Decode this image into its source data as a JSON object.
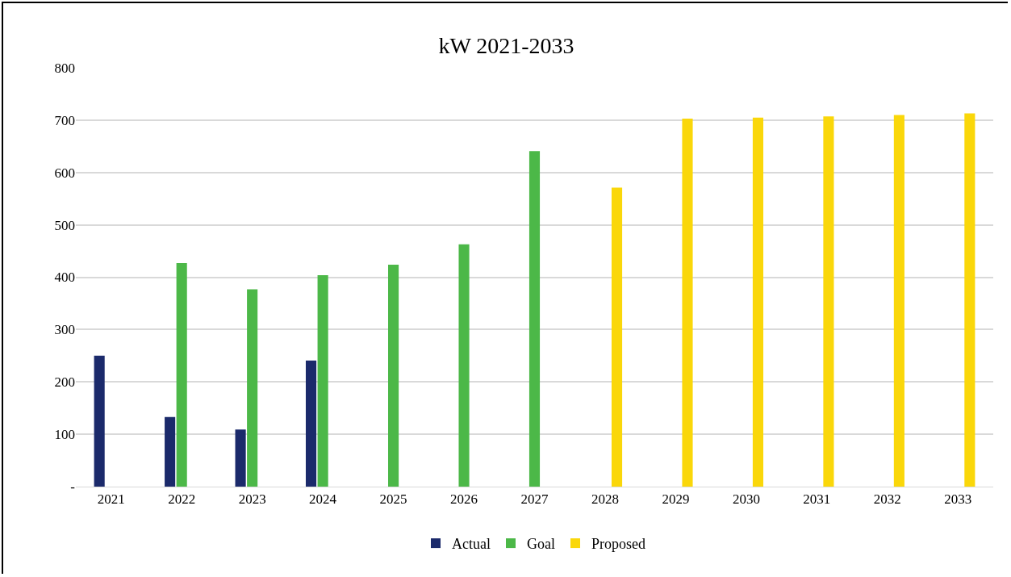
{
  "chart_data": {
    "type": "bar",
    "title": "kW 2021-2033",
    "categories": [
      "2021",
      "2022",
      "2023",
      "2024",
      "2025",
      "2026",
      "2027",
      "2028",
      "2029",
      "2030",
      "2031",
      "2032",
      "2033"
    ],
    "series": [
      {
        "name": "Actual",
        "color": "#1b2a6b",
        "values": [
          250,
          133,
          109,
          241,
          null,
          null,
          null,
          null,
          null,
          null,
          null,
          null,
          null
        ]
      },
      {
        "name": "Goal",
        "color": "#4cb848",
        "values": [
          null,
          427,
          377,
          404,
          424,
          463,
          641,
          null,
          null,
          null,
          null,
          null,
          null
        ]
      },
      {
        "name": "Proposed",
        "color": "#fad70a",
        "values": [
          null,
          null,
          null,
          null,
          null,
          null,
          null,
          571,
          703,
          705,
          707,
          710,
          713
        ]
      }
    ],
    "ylim": [
      0,
      800
    ],
    "yticks": [
      {
        "value": 0,
        "label": "-"
      },
      100,
      200,
      300,
      400,
      500,
      600,
      700,
      800
    ],
    "grid": "y",
    "legend": "bottom"
  }
}
